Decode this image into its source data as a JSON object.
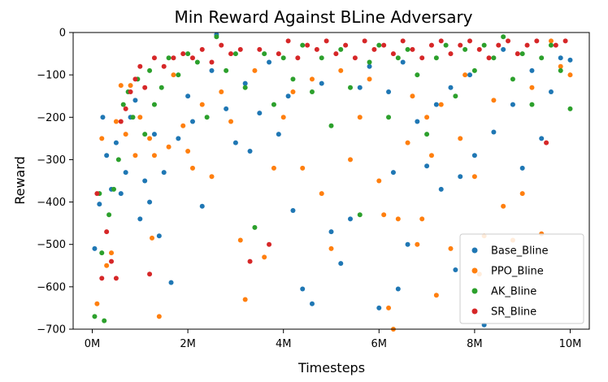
{
  "chart_data": {
    "type": "scatter",
    "title": "Min Reward Against BLine Adversary",
    "xlabel": "Timesteps",
    "ylabel": "Reward",
    "xlim": [
      -400000,
      10400000
    ],
    "ylim": [
      -700,
      0
    ],
    "x_ticks": [
      0,
      2000000,
      4000000,
      6000000,
      8000000,
      10000000
    ],
    "x_tick_labels": [
      "0M",
      "2M",
      "4M",
      "6M",
      "8M",
      "10M"
    ],
    "y_ticks": [
      0,
      -100,
      -200,
      -300,
      -400,
      -500,
      -600,
      -700
    ],
    "y_tick_labels": [
      "0",
      "−100",
      "−200",
      "−300",
      "−400",
      "−500",
      "−600",
      "−700"
    ],
    "legend_position": "lower-right",
    "series": [
      {
        "name": "Base_Bline",
        "color": "#1f77b4",
        "points": [
          [
            50000,
            -510
          ],
          [
            150000,
            -405
          ],
          [
            220000,
            -200
          ],
          [
            300000,
            -290
          ],
          [
            400000,
            -370
          ],
          [
            500000,
            -260
          ],
          [
            600000,
            -380
          ],
          [
            700000,
            -330
          ],
          [
            800000,
            -200
          ],
          [
            900000,
            -160
          ],
          [
            1000000,
            -440
          ],
          [
            1100000,
            -350
          ],
          [
            1200000,
            -400
          ],
          [
            1300000,
            -240
          ],
          [
            1400000,
            -480
          ],
          [
            1500000,
            -330
          ],
          [
            1650000,
            -590
          ],
          [
            1800000,
            -250
          ],
          [
            2000000,
            -150
          ],
          [
            2100000,
            -210
          ],
          [
            2300000,
            -410
          ],
          [
            2500000,
            -90
          ],
          [
            2600000,
            -5
          ],
          [
            2800000,
            -180
          ],
          [
            3000000,
            -260
          ],
          [
            3200000,
            -120
          ],
          [
            3300000,
            -280
          ],
          [
            3500000,
            -190
          ],
          [
            3700000,
            -70
          ],
          [
            3900000,
            -240
          ],
          [
            4100000,
            -150
          ],
          [
            4200000,
            -420
          ],
          [
            4400000,
            -605
          ],
          [
            4600000,
            -640
          ],
          [
            4800000,
            -120
          ],
          [
            5000000,
            -470
          ],
          [
            5200000,
            -545
          ],
          [
            5400000,
            -440
          ],
          [
            5600000,
            -130
          ],
          [
            5800000,
            -80
          ],
          [
            6000000,
            -650
          ],
          [
            6200000,
            -140
          ],
          [
            6300000,
            -330
          ],
          [
            6400000,
            -605
          ],
          [
            6500000,
            -70
          ],
          [
            6600000,
            -500
          ],
          [
            6800000,
            -210
          ],
          [
            7000000,
            -315
          ],
          [
            7200000,
            -170
          ],
          [
            7300000,
            -370
          ],
          [
            7500000,
            -130
          ],
          [
            7600000,
            -560
          ],
          [
            7700000,
            -340
          ],
          [
            7900000,
            -100
          ],
          [
            8000000,
            -290
          ],
          [
            8200000,
            -690
          ],
          [
            8400000,
            -235
          ],
          [
            8600000,
            -40
          ],
          [
            8800000,
            -170
          ],
          [
            9000000,
            -320
          ],
          [
            9200000,
            -90
          ],
          [
            9400000,
            -250
          ],
          [
            9600000,
            -140
          ],
          [
            9800000,
            -60
          ],
          [
            10000000,
            -65
          ]
        ]
      },
      {
        "name": "PPO_Bline",
        "color": "#ff7f0e",
        "points": [
          [
            100000,
            -640
          ],
          [
            200000,
            -250
          ],
          [
            300000,
            -550
          ],
          [
            400000,
            -520
          ],
          [
            500000,
            -210
          ],
          [
            600000,
            -125
          ],
          [
            700000,
            -240
          ],
          [
            800000,
            -125
          ],
          [
            900000,
            -290
          ],
          [
            1000000,
            -200
          ],
          [
            1200000,
            -250
          ],
          [
            1250000,
            -485
          ],
          [
            1300000,
            -290
          ],
          [
            1400000,
            -670
          ],
          [
            1600000,
            -270
          ],
          [
            1700000,
            -100
          ],
          [
            1900000,
            -220
          ],
          [
            2000000,
            -280
          ],
          [
            2100000,
            -320
          ],
          [
            2300000,
            -170
          ],
          [
            2500000,
            -340
          ],
          [
            2700000,
            -140
          ],
          [
            2900000,
            -210
          ],
          [
            3100000,
            -490
          ],
          [
            3200000,
            -630
          ],
          [
            3400000,
            -90
          ],
          [
            3600000,
            -530
          ],
          [
            3800000,
            -320
          ],
          [
            4000000,
            -200
          ],
          [
            4200000,
            -140
          ],
          [
            4400000,
            -320
          ],
          [
            4600000,
            -110
          ],
          [
            4800000,
            -380
          ],
          [
            5000000,
            -510
          ],
          [
            5200000,
            -90
          ],
          [
            5400000,
            -300
          ],
          [
            5600000,
            -200
          ],
          [
            5800000,
            -110
          ],
          [
            6000000,
            -350
          ],
          [
            6100000,
            -430
          ],
          [
            6200000,
            -650
          ],
          [
            6300000,
            -700
          ],
          [
            6400000,
            -440
          ],
          [
            6600000,
            -260
          ],
          [
            6700000,
            -150
          ],
          [
            6800000,
            -500
          ],
          [
            6900000,
            -440
          ],
          [
            7000000,
            -200
          ],
          [
            7100000,
            -290
          ],
          [
            7200000,
            -620
          ],
          [
            7300000,
            -170
          ],
          [
            7500000,
            -510
          ],
          [
            7700000,
            -250
          ],
          [
            7800000,
            -100
          ],
          [
            8000000,
            -340
          ],
          [
            8100000,
            -570
          ],
          [
            8200000,
            -480
          ],
          [
            8400000,
            -160
          ],
          [
            8600000,
            -410
          ],
          [
            8800000,
            -490
          ],
          [
            9000000,
            -380
          ],
          [
            9200000,
            -130
          ],
          [
            9400000,
            -475
          ],
          [
            9600000,
            -20
          ],
          [
            9800000,
            -80
          ],
          [
            10000000,
            -100
          ]
        ]
      },
      {
        "name": "AK_Bline",
        "color": "#2ca02c",
        "points": [
          [
            50000,
            -670
          ],
          [
            150000,
            -380
          ],
          [
            200000,
            -520
          ],
          [
            250000,
            -680
          ],
          [
            350000,
            -430
          ],
          [
            450000,
            -370
          ],
          [
            550000,
            -300
          ],
          [
            650000,
            -170
          ],
          [
            750000,
            -140
          ],
          [
            850000,
            -200
          ],
          [
            950000,
            -110
          ],
          [
            1100000,
            -240
          ],
          [
            1200000,
            -90
          ],
          [
            1300000,
            -170
          ],
          [
            1450000,
            -130
          ],
          [
            1600000,
            -60
          ],
          [
            1800000,
            -100
          ],
          [
            2000000,
            -50
          ],
          [
            2200000,
            -70
          ],
          [
            2400000,
            -200
          ],
          [
            2600000,
            -10
          ],
          [
            2800000,
            -90
          ],
          [
            3000000,
            -50
          ],
          [
            3200000,
            -130
          ],
          [
            3400000,
            -460
          ],
          [
            3600000,
            -50
          ],
          [
            3800000,
            -170
          ],
          [
            4000000,
            -60
          ],
          [
            4200000,
            -110
          ],
          [
            4400000,
            -30
          ],
          [
            4600000,
            -140
          ],
          [
            4800000,
            -60
          ],
          [
            5000000,
            -220
          ],
          [
            5200000,
            -40
          ],
          [
            5400000,
            -130
          ],
          [
            5600000,
            -430
          ],
          [
            5800000,
            -70
          ],
          [
            6000000,
            -30
          ],
          [
            6200000,
            -200
          ],
          [
            6400000,
            -60
          ],
          [
            6600000,
            -40
          ],
          [
            6800000,
            -100
          ],
          [
            7000000,
            -240
          ],
          [
            7200000,
            -60
          ],
          [
            7400000,
            -30
          ],
          [
            7600000,
            -150
          ],
          [
            7800000,
            -40
          ],
          [
            8000000,
            -90
          ],
          [
            8200000,
            -30
          ],
          [
            8400000,
            -60
          ],
          [
            8600000,
            -10
          ],
          [
            8800000,
            -110
          ],
          [
            9000000,
            -50
          ],
          [
            9200000,
            -170
          ],
          [
            9400000,
            -60
          ],
          [
            9600000,
            -30
          ],
          [
            9800000,
            -90
          ],
          [
            10000000,
            -180
          ]
        ]
      },
      {
        "name": "SR_Bline",
        "color": "#d62728",
        "points": [
          [
            100000,
            -380
          ],
          [
            200000,
            -580
          ],
          [
            300000,
            -470
          ],
          [
            400000,
            -540
          ],
          [
            500000,
            -580
          ],
          [
            600000,
            -210
          ],
          [
            700000,
            -180
          ],
          [
            800000,
            -140
          ],
          [
            900000,
            -110
          ],
          [
            1000000,
            -80
          ],
          [
            1100000,
            -130
          ],
          [
            1200000,
            -570
          ],
          [
            1300000,
            -60
          ],
          [
            1500000,
            -80
          ],
          [
            1700000,
            -60
          ],
          [
            1900000,
            -50
          ],
          [
            2100000,
            -60
          ],
          [
            2300000,
            -40
          ],
          [
            2500000,
            -70
          ],
          [
            2700000,
            -30
          ],
          [
            2900000,
            -50
          ],
          [
            3100000,
            -40
          ],
          [
            3300000,
            -540
          ],
          [
            3500000,
            -40
          ],
          [
            3700000,
            -500
          ],
          [
            3900000,
            -50
          ],
          [
            4100000,
            -20
          ],
          [
            4300000,
            -60
          ],
          [
            4500000,
            -30
          ],
          [
            4700000,
            -40
          ],
          [
            4900000,
            -20
          ],
          [
            5100000,
            -50
          ],
          [
            5300000,
            -30
          ],
          [
            5500000,
            -60
          ],
          [
            5700000,
            -20
          ],
          [
            5900000,
            -40
          ],
          [
            6100000,
            -30
          ],
          [
            6300000,
            -50
          ],
          [
            6500000,
            -20
          ],
          [
            6700000,
            -40
          ],
          [
            6900000,
            -60
          ],
          [
            7100000,
            -30
          ],
          [
            7300000,
            -20
          ],
          [
            7500000,
            -50
          ],
          [
            7700000,
            -30
          ],
          [
            7900000,
            -20
          ],
          [
            8100000,
            -40
          ],
          [
            8300000,
            -60
          ],
          [
            8500000,
            -30
          ],
          [
            8700000,
            -20
          ],
          [
            8900000,
            -50
          ],
          [
            9100000,
            -30
          ],
          [
            9300000,
            -20
          ],
          [
            9500000,
            -260
          ],
          [
            9700000,
            -30
          ],
          [
            9900000,
            -20
          ]
        ]
      }
    ]
  }
}
